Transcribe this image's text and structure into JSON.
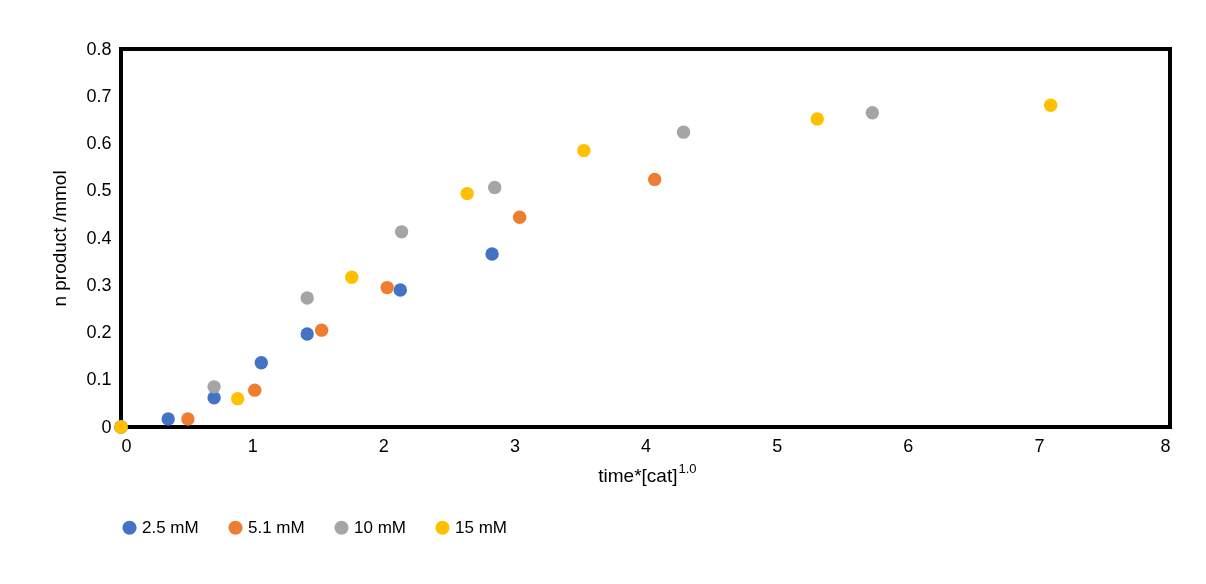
{
  "chart_data": {
    "type": "scatter",
    "xlabel": "time*[cat]$^{1.0}$",
    "ylabel": "n product /mmol",
    "xlim": [
      0,
      8
    ],
    "xticks": [
      0,
      1,
      2,
      3,
      4,
      5,
      6,
      7,
      8
    ],
    "ylim": [
      0,
      0.8
    ],
    "yticks": [
      0,
      0.1,
      0.2,
      0.3,
      0.4,
      0.5,
      0.6,
      0.7,
      0.8
    ],
    "grid": false,
    "legend": "bottom",
    "marker": "circle",
    "series": [
      {
        "name": "2.5 mM",
        "color": "#4472c4",
        "x": [
          0,
          0.36,
          0.71,
          1.07,
          1.42,
          2.13,
          2.83
        ],
        "values": [
          0,
          0.017,
          0.062,
          0.136,
          0.197,
          0.29,
          0.366
        ]
      },
      {
        "name": "5.1 mM",
        "color": "#ed7d31",
        "x": [
          0,
          0.51,
          1.02,
          1.53,
          2.03,
          3.04,
          4.07
        ],
        "values": [
          0,
          0.017,
          0.078,
          0.205,
          0.295,
          0.444,
          0.524
        ]
      },
      {
        "name": "10 mM",
        "color": "#a5a5a5",
        "x": [
          0,
          0.71,
          1.42,
          2.14,
          2.85,
          4.29,
          5.73
        ],
        "values": [
          0,
          0.085,
          0.273,
          0.413,
          0.507,
          0.624,
          0.665
        ]
      },
      {
        "name": "15 mM",
        "color": "#ffc000",
        "x": [
          0,
          0.89,
          1.76,
          2.64,
          3.53,
          5.31,
          7.09
        ],
        "values": [
          0,
          0.06,
          0.317,
          0.494,
          0.585,
          0.652,
          0.681
        ]
      }
    ]
  }
}
